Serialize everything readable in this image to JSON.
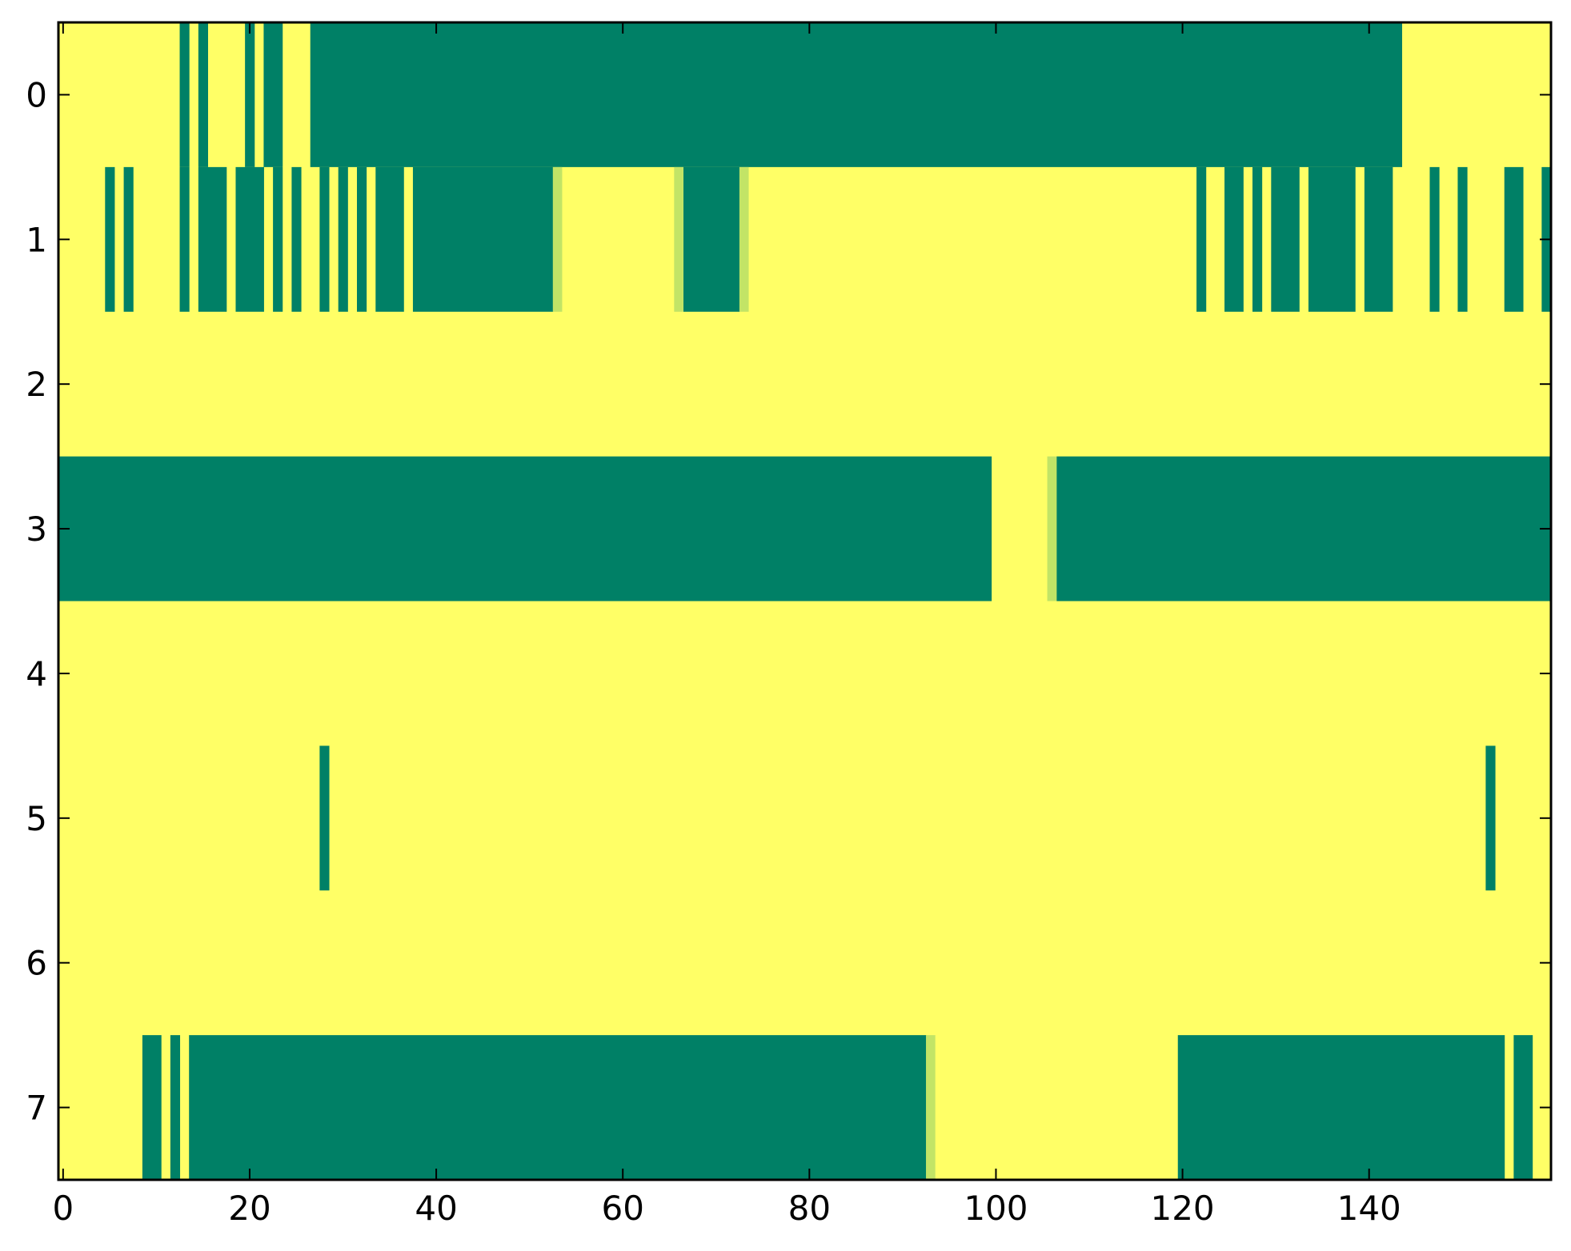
{
  "chart_data": {
    "type": "heatmap",
    "title": "",
    "xlabel": "",
    "ylabel": "",
    "xlim": [
      -0.5,
      159.5
    ],
    "ylim": [
      7.5,
      -0.5
    ],
    "x_ticks": [
      "0",
      "20",
      "40",
      "60",
      "80",
      "100",
      "120",
      "140"
    ],
    "y_ticks": [
      "0",
      "1",
      "2",
      "3",
      "4",
      "5",
      "6",
      "7"
    ],
    "colormap": {
      "high": "#ffff66",
      "low": "#008066",
      "mid": "#b3dd66"
    },
    "background_value": 1.0,
    "rows": [
      {
        "row": 0,
        "low_value_segments": [
          [
            13,
            13
          ],
          [
            15,
            15
          ],
          [
            20,
            20
          ],
          [
            22,
            23
          ],
          [
            27,
            143
          ]
        ],
        "intermediate_cells": []
      },
      {
        "row": 1,
        "low_value_segments": [
          [
            5,
            5
          ],
          [
            7,
            7
          ],
          [
            13,
            13
          ],
          [
            15,
            17
          ],
          [
            19,
            21
          ],
          [
            23,
            23
          ],
          [
            25,
            25
          ],
          [
            28,
            28
          ],
          [
            30,
            30
          ],
          [
            32,
            32
          ],
          [
            34,
            36
          ],
          [
            38,
            52
          ],
          [
            67,
            72
          ],
          [
            122,
            122
          ],
          [
            125,
            126
          ],
          [
            128,
            128
          ],
          [
            130,
            132
          ],
          [
            134,
            138
          ],
          [
            140,
            142
          ],
          [
            147,
            147
          ],
          [
            150,
            150
          ],
          [
            155,
            156
          ],
          [
            159,
            159
          ]
        ],
        "intermediate_cells": [
          [
            53,
            0.6
          ],
          [
            66,
            0.6
          ],
          [
            73,
            0.6
          ]
        ]
      },
      {
        "row": 2,
        "low_value_segments": [],
        "intermediate_cells": []
      },
      {
        "row": 3,
        "low_value_segments": [
          [
            -0.5,
            99.5
          ],
          [
            107,
            159
          ]
        ],
        "intermediate_cells": [
          [
            106,
            0.6
          ]
        ]
      },
      {
        "row": 4,
        "low_value_segments": [],
        "intermediate_cells": []
      },
      {
        "row": 5,
        "low_value_segments": [
          [
            28,
            28
          ],
          [
            153,
            153
          ]
        ],
        "intermediate_cells": []
      },
      {
        "row": 6,
        "low_value_segments": [],
        "intermediate_cells": []
      },
      {
        "row": 7,
        "low_value_segments": [
          [
            9,
            10
          ],
          [
            12,
            12
          ],
          [
            14,
            92
          ],
          [
            120,
            154
          ],
          [
            156,
            157
          ]
        ],
        "intermediate_cells": [
          [
            93,
            0.6
          ]
        ]
      }
    ]
  }
}
